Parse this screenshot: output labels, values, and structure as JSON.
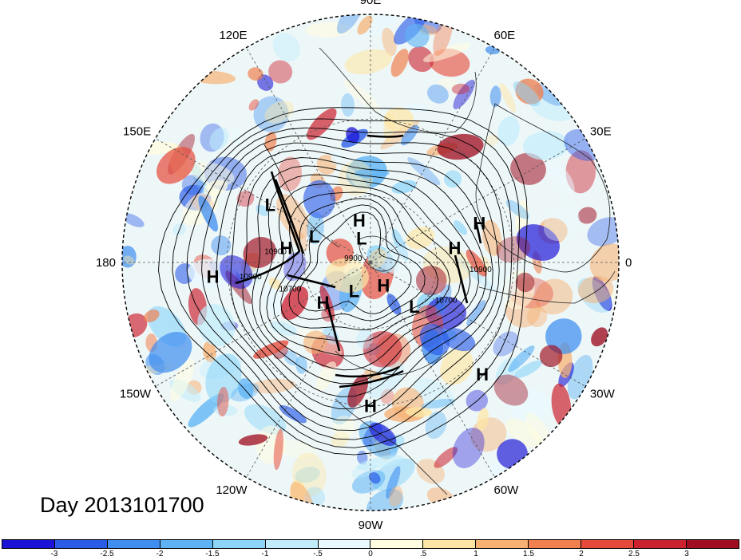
{
  "map": {
    "longitude_labels": [
      {
        "text": "90E",
        "lon": 90
      },
      {
        "text": "120E",
        "lon": 120
      },
      {
        "text": "60E",
        "lon": 60
      },
      {
        "text": "150E",
        "lon": 150
      },
      {
        "text": "30E",
        "lon": 30
      },
      {
        "text": "180",
        "lon": 180
      },
      {
        "text": "0",
        "lon": 0
      },
      {
        "text": "150W",
        "lon": -150
      },
      {
        "text": "30W",
        "lon": -30
      },
      {
        "text": "120W",
        "lon": -120
      },
      {
        "text": "60W",
        "lon": -60
      },
      {
        "text": "90W",
        "lon": -90
      }
    ],
    "pressure_systems": [
      {
        "type": "H",
        "lat": 70,
        "lon": 105
      },
      {
        "type": "L",
        "lat": 40,
        "lon": 150
      },
      {
        "type": "H",
        "lat": 52,
        "lon": 170
      },
      {
        "type": "L",
        "lat": 62,
        "lon": 155
      },
      {
        "type": "L",
        "lat": 78,
        "lon": 110
      },
      {
        "type": "H",
        "lat": 40,
        "lon": 20
      },
      {
        "type": "H",
        "lat": 52,
        "lon": 10
      },
      {
        "type": "H",
        "lat": 25,
        "lon": -175
      },
      {
        "type": "H",
        "lat": 62,
        "lon": -140
      },
      {
        "type": "L",
        "lat": 75,
        "lon": -120
      },
      {
        "type": "H",
        "lat": 78,
        "lon": -60
      },
      {
        "type": "L",
        "lat": 62,
        "lon": -45
      },
      {
        "type": "H",
        "lat": 30,
        "lon": -90
      },
      {
        "type": "H",
        "lat": 25,
        "lon": -45
      }
    ],
    "contour_labels": [
      {
        "text": "10900",
        "lat": 48,
        "lon": 175
      },
      {
        "text": "10900",
        "lat": 38,
        "lon": -172
      },
      {
        "text": "9900",
        "lat": 82,
        "lon": 175
      },
      {
        "text": "10700",
        "lat": 52,
        "lon": -160
      },
      {
        "text": "10700",
        "lat": 52,
        "lon": -28
      },
      {
        "text": "10900",
        "lat": 42,
        "lon": -5
      }
    ],
    "colors": {
      "grid": "#555555",
      "contour": "#000000"
    }
  },
  "day_label": "Day 2013101700",
  "colorbar": {
    "colors": [
      "#1b14d6",
      "#2a5ce8",
      "#3f8ef0",
      "#5db3f5",
      "#8cd5f9",
      "#c0ecfc",
      "#e9f9ff",
      "#fffce0",
      "#fde6a5",
      "#f7b173",
      "#f08050",
      "#e54a3a",
      "#cc2230",
      "#9e0d20"
    ],
    "ticks": [
      "-3",
      "-2.5",
      "-2",
      "-1.5",
      "-1",
      "-.5",
      "0",
      ".5",
      "1",
      "1.5",
      "2",
      "2.5",
      "3"
    ]
  }
}
